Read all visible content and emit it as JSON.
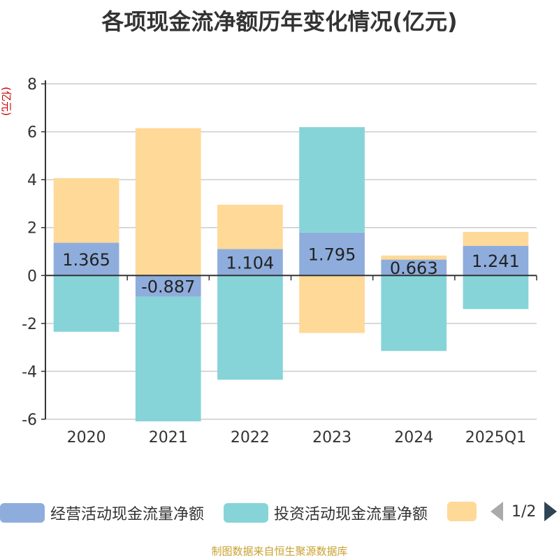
{
  "title": "各项现金流净额历年变化情况(亿元)",
  "source": "制图数据来自恒生聚源数据库",
  "colors": {
    "operating": "#8eaddc",
    "investing": "#86d4d8",
    "financing": "#ffd998",
    "ylabel": "#cc0000"
  },
  "legend": {
    "items": [
      "经营活动现金流量净额",
      "投资活动现金流量净额",
      ""
    ],
    "page": "1/2"
  },
  "chart_data": {
    "type": "bar",
    "stacked": true,
    "categories": [
      "2020",
      "2021",
      "2022",
      "2023",
      "2024",
      "2025Q1"
    ],
    "ylabel": "(亿元)",
    "ylim": [
      -6,
      8
    ],
    "yticks": [
      8,
      6,
      4,
      2,
      0,
      -2,
      -4,
      -6
    ],
    "grid": true,
    "legend_position": "bottom",
    "series": [
      {
        "name": "经营活动现金流量净额",
        "values": [
          1.365,
          -0.887,
          1.104,
          1.795,
          0.663,
          1.241
        ],
        "labels": [
          "1.365",
          "-0.887",
          "1.104",
          "1.795",
          "0.663",
          "1.241"
        ]
      },
      {
        "name": "投资活动现金流量净额",
        "values": [
          -2.35,
          -5.2,
          -4.35,
          4.4,
          -3.15,
          -1.4
        ]
      },
      {
        "values": [
          2.7,
          6.15,
          1.85,
          -2.4,
          0.17,
          0.58
        ]
      }
    ]
  }
}
